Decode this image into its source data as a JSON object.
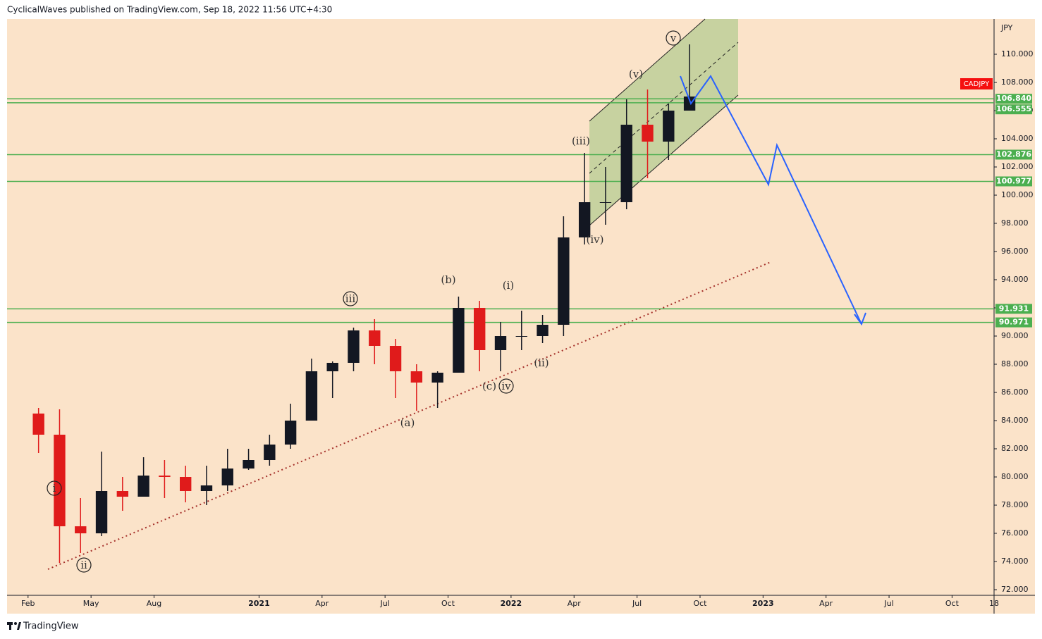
{
  "header": {
    "text": "CyclicalWaves published on TradingView.com, Sep 18, 2022 11:56 UTC+4:30"
  },
  "footer": {
    "brand": "TradingView"
  },
  "chart_data": {
    "type": "candlestick",
    "symbol": "CADJPY",
    "unit": "JPY",
    "up_color": "#131722",
    "down_color": "#e01b1b",
    "level_color": "#4caf50",
    "symbol_color": "#f50f0f",
    "x": [
      "2020-02",
      "2020-03",
      "2020-04",
      "2020-05",
      "2020-06",
      "2020-07",
      "2020-08",
      "2020-09",
      "2020-10",
      "2020-11",
      "2020-12",
      "2021-01",
      "2021-02",
      "2021-03",
      "2021-04",
      "2021-05",
      "2021-06",
      "2021-07",
      "2021-08",
      "2021-09",
      "2021-10",
      "2021-11",
      "2021-12",
      "2022-01",
      "2022-02",
      "2022-03",
      "2022-04",
      "2022-05",
      "2022-06",
      "2022-07",
      "2022-08",
      "2022-09"
    ],
    "open": [
      84.5,
      83.0,
      76.5,
      76.0,
      79.0,
      78.6,
      80.1,
      80.0,
      79.0,
      79.4,
      80.6,
      81.2,
      82.3,
      84.0,
      87.5,
      88.1,
      90.4,
      89.3,
      87.5,
      86.7,
      87.4,
      92.0,
      89.0,
      90.0,
      90.0,
      90.8,
      97.0,
      99.5,
      99.5,
      105.0,
      103.8,
      106.0
    ],
    "high": [
      84.9,
      84.8,
      78.5,
      81.8,
      80.0,
      81.4,
      81.2,
      80.8,
      80.8,
      82.0,
      82.0,
      83.0,
      85.2,
      88.4,
      88.2,
      90.6,
      91.2,
      89.8,
      88.0,
      87.5,
      92.8,
      92.5,
      91.0,
      91.8,
      91.5,
      98.5,
      103.0,
      102.0,
      106.8,
      107.5,
      106.5,
      110.7
    ],
    "low": [
      81.7,
      73.9,
      74.6,
      75.8,
      77.6,
      78.6,
      78.5,
      78.2,
      78.0,
      79.0,
      80.5,
      80.8,
      82.0,
      84.0,
      85.6,
      87.5,
      88.0,
      85.6,
      84.7,
      84.9,
      87.4,
      87.5,
      87.5,
      89.0,
      89.5,
      90.0,
      96.5,
      97.9,
      99.0,
      101.2,
      102.5,
      106.0
    ],
    "close": [
      83.0,
      76.5,
      76.0,
      79.0,
      78.6,
      80.1,
      80.0,
      79.0,
      79.4,
      80.6,
      81.2,
      82.3,
      84.0,
      87.5,
      88.1,
      90.4,
      89.3,
      87.5,
      86.7,
      87.4,
      92.0,
      89.0,
      90.0,
      90.0,
      90.8,
      97.0,
      99.5,
      99.5,
      105.0,
      103.8,
      106.0,
      107.0
    ],
    "xlim": [
      "2020-01",
      "2023-12"
    ],
    "xticks": [
      {
        "value": "2020-02",
        "label": "Feb"
      },
      {
        "value": "2020-05",
        "label": "May"
      },
      {
        "value": "2020-08",
        "label": "Aug"
      },
      {
        "value": "2021-01",
        "label": "2021"
      },
      {
        "value": "2021-04",
        "label": "Apr"
      },
      {
        "value": "2021-07",
        "label": "Jul"
      },
      {
        "value": "2021-10",
        "label": "Oct"
      },
      {
        "value": "2022-01",
        "label": "2022"
      },
      {
        "value": "2022-04",
        "label": "Apr"
      },
      {
        "value": "2022-07",
        "label": "Jul"
      },
      {
        "value": "2022-10",
        "label": "Oct"
      },
      {
        "value": "2023-01",
        "label": "2023"
      },
      {
        "value": "2023-04",
        "label": "Apr"
      },
      {
        "value": "2023-07",
        "label": "Jul"
      },
      {
        "value": "2023-10",
        "label": "Oct"
      },
      {
        "value": "2023-12",
        "label": "18"
      }
    ],
    "ylim": [
      71.6,
      112.5
    ],
    "yticks": [
      {
        "value": 72,
        "label": "72.000"
      },
      {
        "value": 74,
        "label": "74.000"
      },
      {
        "value": 76,
        "label": "76.000"
      },
      {
        "value": 78,
        "label": "78.000"
      },
      {
        "value": 80,
        "label": "80.000"
      },
      {
        "value": 82,
        "label": "82.000"
      },
      {
        "value": 84,
        "label": "84.000"
      },
      {
        "value": 86,
        "label": "86.000"
      },
      {
        "value": 88,
        "label": "88.000"
      },
      {
        "value": 90,
        "label": "90.000"
      },
      {
        "value": 92,
        "label": "92.000"
      },
      {
        "value": 94,
        "label": "94.000"
      },
      {
        "value": 96,
        "label": "96.000"
      },
      {
        "value": 98,
        "label": "98.000"
      },
      {
        "value": 100,
        "label": "100.000"
      },
      {
        "value": 102,
        "label": "102.000"
      },
      {
        "value": 104,
        "label": "104.000"
      },
      {
        "value": 106,
        "label": "106.000"
      },
      {
        "value": 108,
        "label": "108.000"
      },
      {
        "value": 110,
        "label": "110.000"
      }
    ],
    "levels": [
      {
        "value": 106.84,
        "label": "106.840"
      },
      {
        "value": 106.555,
        "label": "106.555"
      },
      {
        "value": 102.876,
        "label": "102.876"
      },
      {
        "value": 100.977,
        "label": "100.977"
      },
      {
        "value": 91.931,
        "label": "91.931"
      },
      {
        "value": 90.971,
        "label": "90.971"
      }
    ],
    "annotations": [
      {
        "text": "i",
        "circled": true
      },
      {
        "text": "ii",
        "circled": true
      },
      {
        "text": "iii",
        "circled": true
      },
      {
        "text": "iv",
        "circled": true
      },
      {
        "text": "v",
        "circled": true
      },
      {
        "text": "(i)",
        "circled": false
      },
      {
        "text": "(ii)",
        "circled": false
      },
      {
        "text": "(iii)",
        "circled": false
      },
      {
        "text": "(iv)",
        "circled": false
      },
      {
        "text": "(v)",
        "circled": false
      },
      {
        "text": "(a)",
        "circled": false
      },
      {
        "text": "(b)",
        "circled": false
      },
      {
        "text": "(c)",
        "circled": false
      }
    ]
  }
}
